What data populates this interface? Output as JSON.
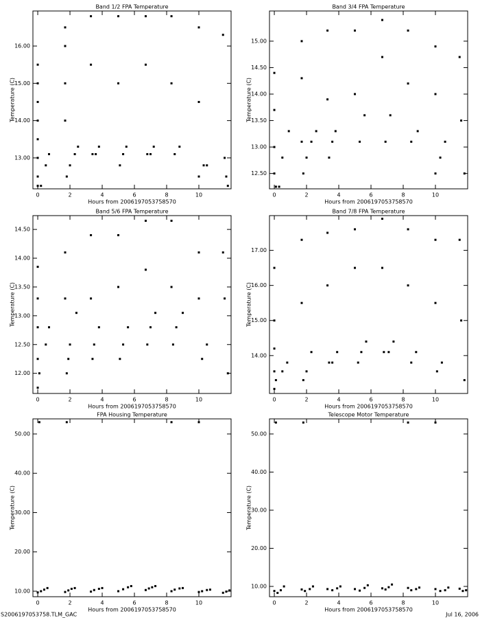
{
  "chart_data": [
    {
      "type": "scatter",
      "title": "Band 1/2 FPA Temperature",
      "x_label": "Hours from 2006197053758570",
      "y_label": "Temperature (C)",
      "color": "#000000",
      "xlim": [
        -0.3,
        12.0
      ],
      "xticks": [
        0,
        2,
        4,
        6,
        8,
        10
      ],
      "ylim": [
        12.17,
        16.94
      ],
      "yticks": [
        {
          "value": 13,
          "label": "13.00"
        },
        {
          "value": 14,
          "label": "14.00"
        },
        {
          "value": 15,
          "label": "15.00"
        },
        {
          "value": 16,
          "label": "16.00"
        }
      ],
      "x": [
        0,
        0.2,
        0,
        0,
        0,
        0,
        0,
        0,
        0,
        0.5,
        0.7,
        1.7,
        1.7,
        1.7,
        1.7,
        1.8,
        2.0,
        2.3,
        2.5,
        3.3,
        3.3,
        3.4,
        3.6,
        3.8,
        5.0,
        5.0,
        5.1,
        5.3,
        5.5,
        6.7,
        6.7,
        6.8,
        7.0,
        7.2,
        8.3,
        8.3,
        8.5,
        8.8,
        10.0,
        10.0,
        10.0,
        10.3,
        10.5,
        11.5,
        11.6,
        11.7,
        11.8
      ],
      "values": [
        12.25,
        12.25,
        12.5,
        13.0,
        13.5,
        14.0,
        14.5,
        15.0,
        15.5,
        12.8,
        13.1,
        16.5,
        16.0,
        15.0,
        14.0,
        12.5,
        12.8,
        13.1,
        13.3,
        16.8,
        15.5,
        13.1,
        13.1,
        13.3,
        16.8,
        15.0,
        12.8,
        13.1,
        13.3,
        16.8,
        15.5,
        13.1,
        13.1,
        13.3,
        16.8,
        15.0,
        13.1,
        13.3,
        16.5,
        14.5,
        12.5,
        12.8,
        12.8,
        16.3,
        13.0,
        12.5,
        12.25
      ]
    },
    {
      "type": "scatter",
      "title": "Band 3/4 FPA Temperature",
      "x_label": "Hours from 2006197053758570",
      "y_label": "Temperature (C)",
      "color": "#000000",
      "xlim": [
        -0.3,
        12.0
      ],
      "xticks": [
        0,
        2,
        4,
        6,
        8,
        10
      ],
      "ylim": [
        12.21,
        15.57
      ],
      "yticks": [
        {
          "value": 12.5,
          "label": "12.50"
        },
        {
          "value": 13,
          "label": "13.00"
        },
        {
          "value": 13.5,
          "label": "13.50"
        },
        {
          "value": 14,
          "label": "14.00"
        },
        {
          "value": 14.5,
          "label": "14.50"
        },
        {
          "value": 15,
          "label": "15.00"
        }
      ],
      "x": [
        0.1,
        0.3,
        0,
        0,
        0,
        0,
        0.5,
        0.9,
        1.7,
        1.7,
        1.7,
        1.8,
        2.0,
        2.3,
        2.6,
        3.3,
        3.3,
        3.4,
        3.6,
        3.8,
        5.0,
        5.0,
        5.3,
        5.6,
        6.7,
        6.7,
        6.9,
        7.2,
        8.3,
        8.3,
        8.5,
        8.9,
        10.0,
        10.0,
        10.0,
        10.3,
        10.6,
        11.5,
        11.6,
        11.8
      ],
      "values": [
        12.25,
        12.25,
        12.5,
        13.0,
        13.7,
        14.4,
        12.8,
        13.3,
        15.0,
        14.3,
        13.1,
        12.5,
        12.8,
        13.1,
        13.3,
        15.2,
        13.9,
        12.8,
        13.1,
        13.3,
        15.2,
        14.0,
        13.1,
        13.6,
        15.4,
        14.7,
        13.1,
        13.6,
        15.2,
        14.2,
        13.1,
        13.3,
        14.9,
        14.0,
        12.5,
        12.8,
        13.1,
        14.7,
        13.5,
        12.5
      ]
    },
    {
      "type": "scatter",
      "title": "Band 5/6 FPA Temperature",
      "x_label": "Hours from 2006197053758570",
      "y_label": "Temperature (C)",
      "color": "#000000",
      "xlim": [
        -0.3,
        12.0
      ],
      "xticks": [
        0,
        2,
        4,
        6,
        8,
        10
      ],
      "ylim": [
        11.65,
        14.74
      ],
      "yticks": [
        {
          "value": 12,
          "label": "12.00"
        },
        {
          "value": 12.5,
          "label": "12.50"
        },
        {
          "value": 13,
          "label": "13.00"
        },
        {
          "value": 13.5,
          "label": "13.50"
        },
        {
          "value": 14,
          "label": "14.00"
        },
        {
          "value": 14.5,
          "label": "14.50"
        }
      ],
      "x": [
        0,
        0.1,
        0,
        0,
        0,
        0,
        0.5,
        0.7,
        1.7,
        1.7,
        1.8,
        1.9,
        2.0,
        2.4,
        3.3,
        3.3,
        3.4,
        3.5,
        3.8,
        5.0,
        5.0,
        5.1,
        5.3,
        5.6,
        6.7,
        6.7,
        6.8,
        7.0,
        7.3,
        8.3,
        8.3,
        8.4,
        8.6,
        9.0,
        10.0,
        10.0,
        10.2,
        10.5,
        11.5,
        11.6,
        11.8
      ],
      "values": [
        11.75,
        12.0,
        12.25,
        12.8,
        13.3,
        13.85,
        12.5,
        12.8,
        14.1,
        13.3,
        12.0,
        12.25,
        12.5,
        13.05,
        14.4,
        13.3,
        12.25,
        12.5,
        12.8,
        14.4,
        13.5,
        12.25,
        12.5,
        12.8,
        14.65,
        13.8,
        12.5,
        12.8,
        13.05,
        14.65,
        13.5,
        12.5,
        12.8,
        13.05,
        14.1,
        13.3,
        12.25,
        12.5,
        14.1,
        13.3,
        12.0
      ]
    },
    {
      "type": "scatter",
      "title": "Band 7/8 FPA Temperature",
      "x_label": "Hours from 2006197053758570",
      "y_label": "Temperature (C)",
      "color": "#000000",
      "xlim": [
        -0.3,
        12.0
      ],
      "xticks": [
        0,
        2,
        4,
        6,
        8,
        10
      ],
      "ylim": [
        12.92,
        17.99
      ],
      "yticks": [
        {
          "value": 14,
          "label": "14.00"
        },
        {
          "value": 15,
          "label": "15.00"
        },
        {
          "value": 16,
          "label": "16.00"
        },
        {
          "value": 17,
          "label": "17.00"
        }
      ],
      "x": [
        0,
        0.1,
        0,
        0,
        0,
        0,
        0.5,
        0.8,
        1.7,
        1.7,
        1.8,
        2.0,
        2.3,
        3.3,
        3.3,
        3.4,
        3.6,
        3.9,
        5.0,
        5.0,
        5.2,
        5.4,
        5.7,
        6.7,
        6.7,
        6.8,
        7.1,
        7.4,
        8.3,
        8.3,
        8.5,
        8.8,
        10.0,
        10.0,
        10.1,
        10.4,
        11.5,
        11.6,
        11.8
      ],
      "values": [
        13.05,
        13.3,
        13.55,
        14.2,
        15.0,
        16.5,
        13.55,
        13.8,
        17.3,
        15.5,
        13.3,
        13.55,
        14.1,
        17.5,
        16.0,
        13.8,
        13.8,
        14.1,
        17.6,
        16.5,
        13.8,
        14.1,
        14.4,
        17.9,
        16.5,
        14.1,
        14.1,
        14.4,
        17.6,
        16.0,
        13.8,
        14.1,
        17.3,
        15.5,
        13.55,
        13.8,
        17.3,
        15.0,
        13.3
      ]
    },
    {
      "type": "scatter",
      "title": "FPA Housing Temperature",
      "x_label": "Hours from 2006197053758570",
      "y_label": "Temperature (C)",
      "color": "#000000",
      "xlim": [
        -0.3,
        12.0
      ],
      "xticks": [
        0,
        2,
        4,
        6,
        8,
        10
      ],
      "ylim": [
        8.6,
        53.84
      ],
      "yticks": [
        {
          "value": 10,
          "label": "10.00"
        },
        {
          "value": 20,
          "label": "20.00"
        },
        {
          "value": 30,
          "label": "30.00"
        },
        {
          "value": 40,
          "label": "40.00"
        },
        {
          "value": 50,
          "label": "50.00"
        }
      ],
      "x": [
        0,
        0.2,
        0.4,
        0.6,
        0.1,
        1.7,
        1.9,
        2.1,
        2.3,
        1.8,
        3.3,
        3.5,
        3.8,
        4.0,
        5.0,
        5.3,
        5.6,
        5.8,
        6.7,
        6.9,
        7.1,
        7.3,
        8.3,
        8.5,
        8.8,
        9.0,
        8.3,
        10.0,
        10.2,
        10.5,
        10.7,
        10.0,
        11.5,
        11.7,
        11.9
      ],
      "values": [
        9.7,
        10.0,
        10.4,
        10.8,
        53.0,
        9.8,
        10.2,
        10.6,
        10.8,
        53.0,
        9.9,
        10.3,
        10.6,
        10.8,
        10.0,
        10.5,
        11.0,
        11.3,
        10.3,
        10.7,
        11.0,
        11.3,
        10.0,
        10.4,
        10.7,
        10.8,
        53.0,
        9.8,
        10.0,
        10.3,
        10.4,
        53.0,
        9.6,
        9.9,
        10.2
      ]
    },
    {
      "type": "scatter",
      "title": "Telescope Motor Temperature",
      "x_label": "Hours from 2006197053758570",
      "y_label": "Temperature (C)",
      "color": "#000000",
      "xlim": [
        -0.3,
        12.0
      ],
      "xticks": [
        0,
        2,
        4,
        6,
        8,
        10
      ],
      "ylim": [
        7.3,
        53.96
      ],
      "yticks": [
        {
          "value": 10,
          "label": "10.00"
        },
        {
          "value": 20,
          "label": "20.00"
        },
        {
          "value": 30,
          "label": "30.00"
        },
        {
          "value": 40,
          "label": "40.00"
        },
        {
          "value": 50,
          "label": "50.00"
        }
      ],
      "x": [
        0,
        0.2,
        0.4,
        0.6,
        0.1,
        1.7,
        1.9,
        2.2,
        2.4,
        1.8,
        3.3,
        3.6,
        3.9,
        4.1,
        5.0,
        5.3,
        5.6,
        5.8,
        6.7,
        6.9,
        7.1,
        7.3,
        8.3,
        8.5,
        8.8,
        9.0,
        8.3,
        10.0,
        10.3,
        10.6,
        10.8,
        10.0,
        11.5,
        11.7,
        11.9
      ],
      "values": [
        8.8,
        8.3,
        9.0,
        10.0,
        53.0,
        9.2,
        8.8,
        9.3,
        10.0,
        53.0,
        9.3,
        9.0,
        9.5,
        10.0,
        9.3,
        8.9,
        9.6,
        10.3,
        9.5,
        9.2,
        9.8,
        10.5,
        9.6,
        9.0,
        9.3,
        9.7,
        53.0,
        9.3,
        8.8,
        9.0,
        9.7,
        53.0,
        9.4,
        8.8,
        9.0
      ]
    }
  ],
  "footer": {
    "left": "S2006197053758.TLM_GAC",
    "right": "Jul 16, 2006"
  }
}
